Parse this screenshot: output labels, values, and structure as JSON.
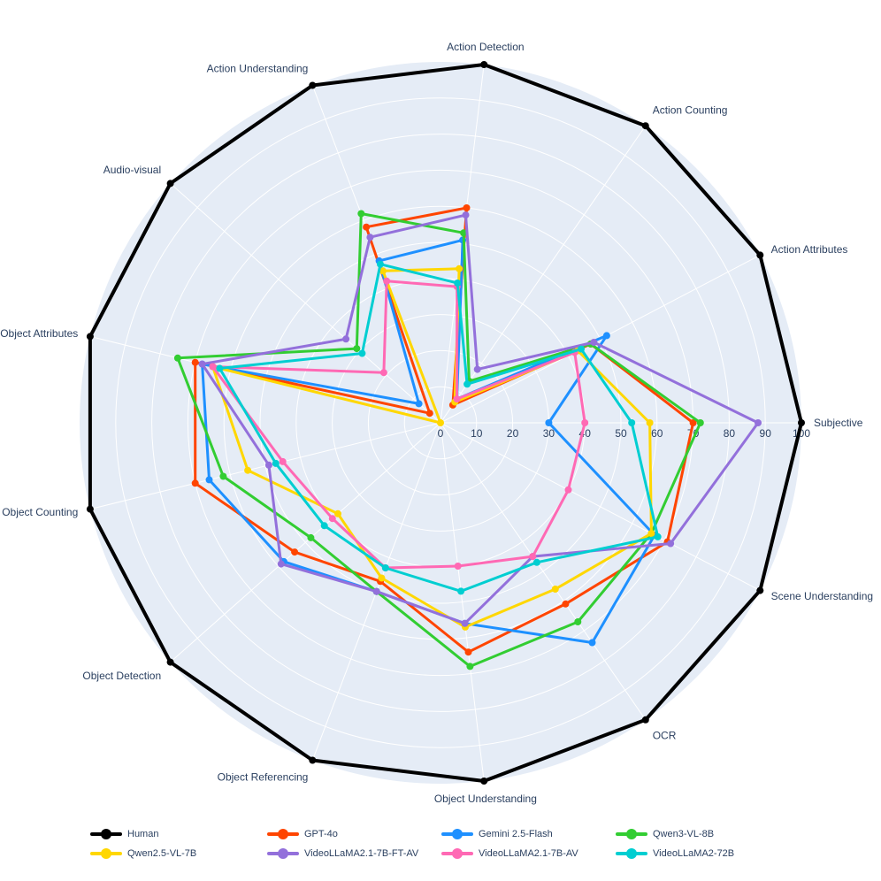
{
  "chart_data": {
    "type": "radar",
    "axes": [
      "Subjective",
      "Scene Understanding",
      "OCR",
      "Object Understanding",
      "Object Referencing",
      "Object Detection",
      "Object Counting",
      "Object Attributes",
      "Audio-visual",
      "Action Understanding",
      "Action Detection",
      "Action Counting",
      "Action Attributes"
    ],
    "radial_ticks": [
      0,
      10,
      20,
      30,
      40,
      50,
      60,
      70,
      80,
      90,
      100
    ],
    "range": [
      0,
      100
    ],
    "series": [
      {
        "name": "Human",
        "color": "#000000",
        "values": [
          100,
          100,
          100,
          100,
          100,
          100,
          100,
          100,
          100,
          100,
          100,
          100,
          100
        ]
      },
      {
        "name": "GPT-4o",
        "color": "#ff4500",
        "values": [
          70,
          71,
          61,
          64,
          47,
          54,
          70,
          70,
          4,
          58,
          60,
          6,
          47
        ]
      },
      {
        "name": "Gemini 2.5-Flash",
        "color": "#1e90ff",
        "values": [
          30,
          67,
          74,
          56,
          50,
          58,
          66,
          68,
          8,
          48,
          51,
          8,
          52
        ]
      },
      {
        "name": "Qwen3-VL-8B",
        "color": "#32cd32",
        "values": [
          72,
          66,
          67,
          68,
          50,
          48,
          62,
          75,
          31,
          62,
          53,
          14,
          47
        ]
      },
      {
        "name": "Qwen2.5-VL-7B",
        "color": "#ffd700",
        "values": [
          58,
          66,
          56,
          57,
          46,
          38,
          55,
          65,
          0,
          45,
          43,
          7,
          43
        ]
      },
      {
        "name": "VideoLLaMA2.1-7B-FT-AV",
        "color": "#9370db",
        "values": [
          88,
          72,
          45,
          56,
          50,
          59,
          49,
          68,
          35,
          55,
          58,
          18,
          48
        ]
      },
      {
        "name": "VideoLLaMA2.1-7B-AV",
        "color": "#ff69b4",
        "values": [
          40,
          40,
          45,
          40,
          43,
          40,
          45,
          65,
          21,
          42,
          38,
          8,
          42
        ]
      },
      {
        "name": "VideoLLaMA2-72B",
        "color": "#00ced1",
        "values": [
          53,
          68,
          47,
          47,
          43,
          43,
          47,
          63,
          29,
          47,
          39,
          13,
          44
        ]
      }
    ],
    "grid": true,
    "legend_position": "bottom"
  }
}
